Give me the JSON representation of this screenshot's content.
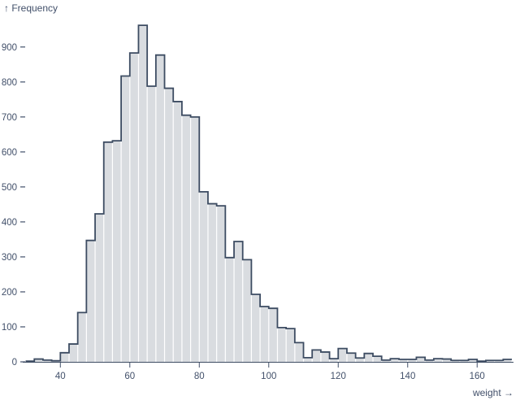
{
  "chart_data": {
    "type": "bar",
    "subtype": "histogram",
    "title": "",
    "xlabel": "weight",
    "ylabel": "Frequency",
    "xlabel_display": "weight →",
    "ylabel_display": "↑ Frequency",
    "x_domain": [
      30,
      170
    ],
    "y_domain": [
      0,
      970
    ],
    "x_ticks": [
      40,
      60,
      80,
      100,
      120,
      140,
      160
    ],
    "y_ticks": [
      0,
      100,
      200,
      300,
      400,
      500,
      600,
      700,
      800,
      900
    ],
    "grid": false,
    "legend": "none",
    "bins": {
      "start": 30,
      "width": 2.5,
      "counts": [
        2,
        8,
        5,
        3,
        26,
        51,
        141,
        347,
        423,
        628,
        632,
        817,
        883,
        962,
        788,
        877,
        782,
        744,
        705,
        700,
        486,
        452,
        446,
        298,
        344,
        292,
        193,
        158,
        153,
        98,
        95,
        55,
        12,
        34,
        28,
        9,
        38,
        25,
        11,
        24,
        16,
        5,
        9,
        7,
        7,
        13,
        5,
        9,
        8,
        4,
        4,
        7,
        2,
        4,
        4,
        7
      ]
    },
    "colors": {
      "bar_fill": "#d9dce0",
      "outline": "#3d4c62",
      "axis_text": "#42506a",
      "tick_mark": "#42506a",
      "background": "#ffffff"
    }
  }
}
